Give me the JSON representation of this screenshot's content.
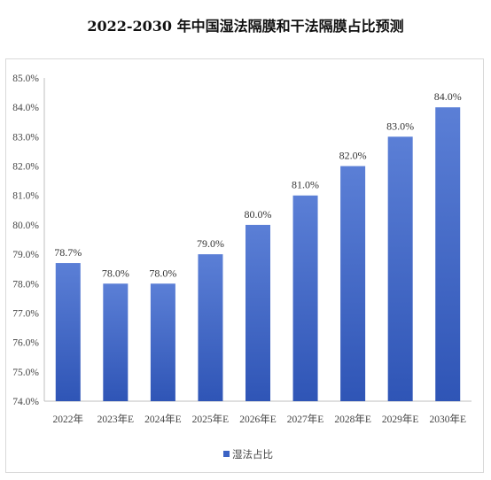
{
  "chart_data": {
    "type": "bar",
    "title": "2022-2030 年中国湿法隔膜和干法隔膜占比预测",
    "categories": [
      "2022年",
      "2023年E",
      "2024年E",
      "2025年E",
      "2026年E",
      "2027年E",
      "2028年E",
      "2029年E",
      "2030年E"
    ],
    "series": [
      {
        "name": "湿法占比",
        "values": [
          78.7,
          78.0,
          78.0,
          79.0,
          80.0,
          81.0,
          82.0,
          83.0,
          84.0
        ],
        "data_labels": [
          "78.7%",
          "78.0%",
          "78.0%",
          "79.0%",
          "80.0%",
          "81.0%",
          "82.0%",
          "83.0%",
          "84.0%"
        ]
      }
    ],
    "ylim": [
      74.0,
      85.0
    ],
    "yticks": [
      "74.0%",
      "75.0%",
      "76.0%",
      "77.0%",
      "78.0%",
      "79.0%",
      "80.0%",
      "81.0%",
      "82.0%",
      "83.0%",
      "84.0%",
      "85.0%"
    ],
    "ytick_values": [
      74,
      75,
      76,
      77,
      78,
      79,
      80,
      81,
      82,
      83,
      84,
      85
    ],
    "grid": false,
    "legend_position": "bottom",
    "colors": {
      "bar_top": "#5b7fd6",
      "bar_bottom": "#2f55b6",
      "legend": "#3b63c4"
    }
  }
}
